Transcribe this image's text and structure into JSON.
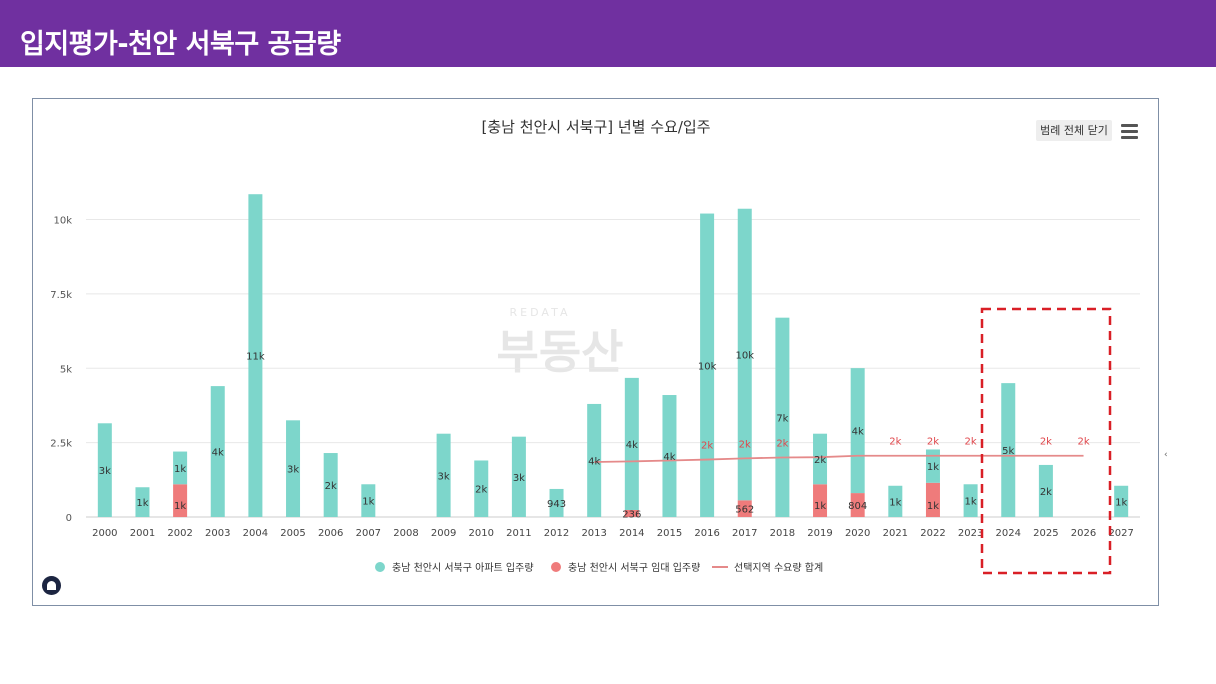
{
  "slide": {
    "title": "입지평가-천안 서북구 공급량",
    "header_color": "#7030a0"
  },
  "chart_ui": {
    "legend_toggle_label": "범례 전체 닫기",
    "menu_icon": "hamburger-menu-icon",
    "logo_icon": "home-logo-icon",
    "watermark_text": "부동산",
    "watermark_subtext": "REDATA"
  },
  "chart_data": {
    "type": "bar",
    "title": "[충남 천안시 서북구] 년별 수요/입주",
    "categories": [
      "2000",
      "2001",
      "2002",
      "2003",
      "2004",
      "2005",
      "2006",
      "2007",
      "2008",
      "2009",
      "2010",
      "2011",
      "2012",
      "2013",
      "2014",
      "2015",
      "2016",
      "2017",
      "2018",
      "2019",
      "2020",
      "2021",
      "2022",
      "2023",
      "2024",
      "2025",
      "2026",
      "2027"
    ],
    "ylim": [
      0,
      12000
    ],
    "yticks": [
      0,
      2500,
      5000,
      7500,
      10000
    ],
    "ytick_labels": [
      "0",
      "2.5k",
      "5k",
      "7.5k",
      "10k"
    ],
    "grid": true,
    "legend_position": "bottom",
    "series": [
      {
        "name": "충남 천안시 서북구 아파트 입주량",
        "color": "#7dd6cb",
        "kind": "bar",
        "values": [
          3150,
          1000,
          1100,
          4400,
          10850,
          3250,
          2150,
          1100,
          0,
          2800,
          1900,
          2700,
          943,
          3800,
          4440,
          4100,
          10200,
          9800,
          6700,
          1700,
          4200,
          1050,
          1120,
          1100,
          4500,
          1750,
          0,
          1050
        ],
        "labels": [
          "3k",
          "1k",
          "1k",
          "4k",
          "11k",
          "3k",
          "2k",
          "1k",
          "",
          "3k",
          "2k",
          "3k",
          "943",
          "4k",
          "4k",
          "4k",
          "10k",
          "10k",
          "7k",
          "2k",
          "4k",
          "1k",
          "1k",
          "1k",
          "5k",
          "2k",
          "",
          "1k"
        ]
      },
      {
        "name": "충남 천안시 서북구 임대 입주량",
        "color": "#ef7b7b",
        "kind": "bar",
        "values": [
          0,
          0,
          1100,
          0,
          0,
          0,
          0,
          0,
          0,
          0,
          0,
          0,
          0,
          0,
          236,
          0,
          0,
          562,
          0,
          1100,
          804,
          0,
          1150,
          0,
          0,
          0,
          0,
          0
        ],
        "labels": [
          "",
          "",
          "1k",
          "",
          "",
          "",
          "",
          "",
          "",
          "",
          "",
          "",
          "",
          "",
          "236",
          "",
          "",
          "562",
          "",
          "1k",
          "804",
          "",
          "1k",
          "",
          "",
          "",
          "",
          ""
        ]
      },
      {
        "name": "선택지역 수요량 합계",
        "color": "#e58a8a",
        "kind": "line",
        "values": [
          null,
          null,
          null,
          null,
          null,
          null,
          null,
          null,
          null,
          null,
          null,
          null,
          null,
          1850,
          1870,
          1900,
          1930,
          1970,
          2000,
          2010,
          2060,
          2060,
          2060,
          2060,
          2060,
          2060,
          2060,
          null
        ],
        "labels": [
          "",
          "",
          "",
          "",
          "",
          "",
          "",
          "",
          "",
          "",
          "",
          "",
          "",
          "",
          "",
          "",
          "2k",
          "2k",
          "2k",
          "",
          "",
          "2k",
          "2k",
          "2k",
          "",
          "2k",
          "2k",
          ""
        ]
      }
    ]
  }
}
